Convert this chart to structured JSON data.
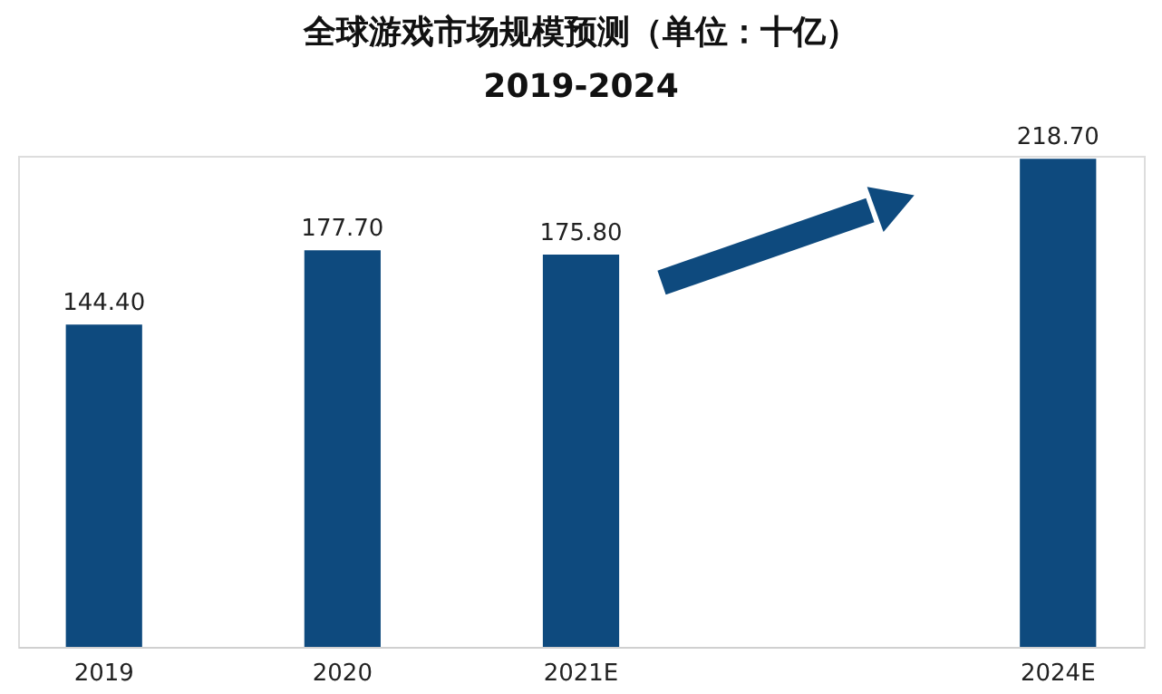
{
  "chart_data": {
    "type": "bar",
    "title": "全球游戏市场规模预测（单位：十亿）",
    "subtitle": "2019-2024",
    "categories": [
      "2019",
      "2020",
      "2021E",
      null,
      "2024E"
    ],
    "values": [
      144.4,
      177.7,
      175.8,
      null,
      218.7
    ],
    "value_labels": [
      "144.40",
      "177.70",
      "175.80",
      null,
      "218.70"
    ],
    "color": "#0e4a7e"
  }
}
